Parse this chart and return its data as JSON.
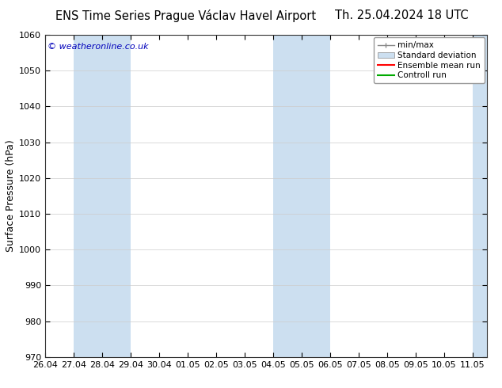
{
  "title_left": "ENS Time Series Prague Václav Havel Airport",
  "title_right": "Th. 25.04.2024 18 UTC",
  "ylabel": "Surface Pressure (hPa)",
  "ylim": [
    970,
    1060
  ],
  "yticks": [
    970,
    980,
    990,
    1000,
    1010,
    1020,
    1030,
    1040,
    1050,
    1060
  ],
  "xlabels": [
    "26.04",
    "27.04",
    "28.04",
    "29.04",
    "30.04",
    "01.05",
    "02.05",
    "03.05",
    "04.05",
    "05.05",
    "06.05",
    "07.05",
    "08.05",
    "09.05",
    "10.05",
    "11.05"
  ],
  "xvalues": [
    0,
    1,
    2,
    3,
    4,
    5,
    6,
    7,
    8,
    9,
    10,
    11,
    12,
    13,
    14,
    15
  ],
  "shaded_bands": [
    {
      "xmin": 1.0,
      "xmax": 3.0,
      "color": "#ccdff0"
    },
    {
      "xmin": 8.0,
      "xmax": 10.0,
      "color": "#ccdff0"
    },
    {
      "xmin": 15.0,
      "xmax": 15.5,
      "color": "#ccdff0"
    }
  ],
  "legend_labels": [
    "min/max",
    "Standard deviation",
    "Ensemble mean run",
    "Controll run"
  ],
  "legend_line_colors": [
    "#a0b8cc",
    "#a0b8cc",
    "#ff0000",
    "#00aa00"
  ],
  "legend_fill_colors": [
    "#ffffff",
    "#c8dcea",
    "#ffffff",
    "#ffffff"
  ],
  "watermark_text": "© weatheronline.co.uk",
  "watermark_color": "#0000bb",
  "background_color": "#ffffff",
  "title_fontsize": 10.5,
  "tick_fontsize": 8,
  "ylabel_fontsize": 9,
  "legend_fontsize": 7.5
}
